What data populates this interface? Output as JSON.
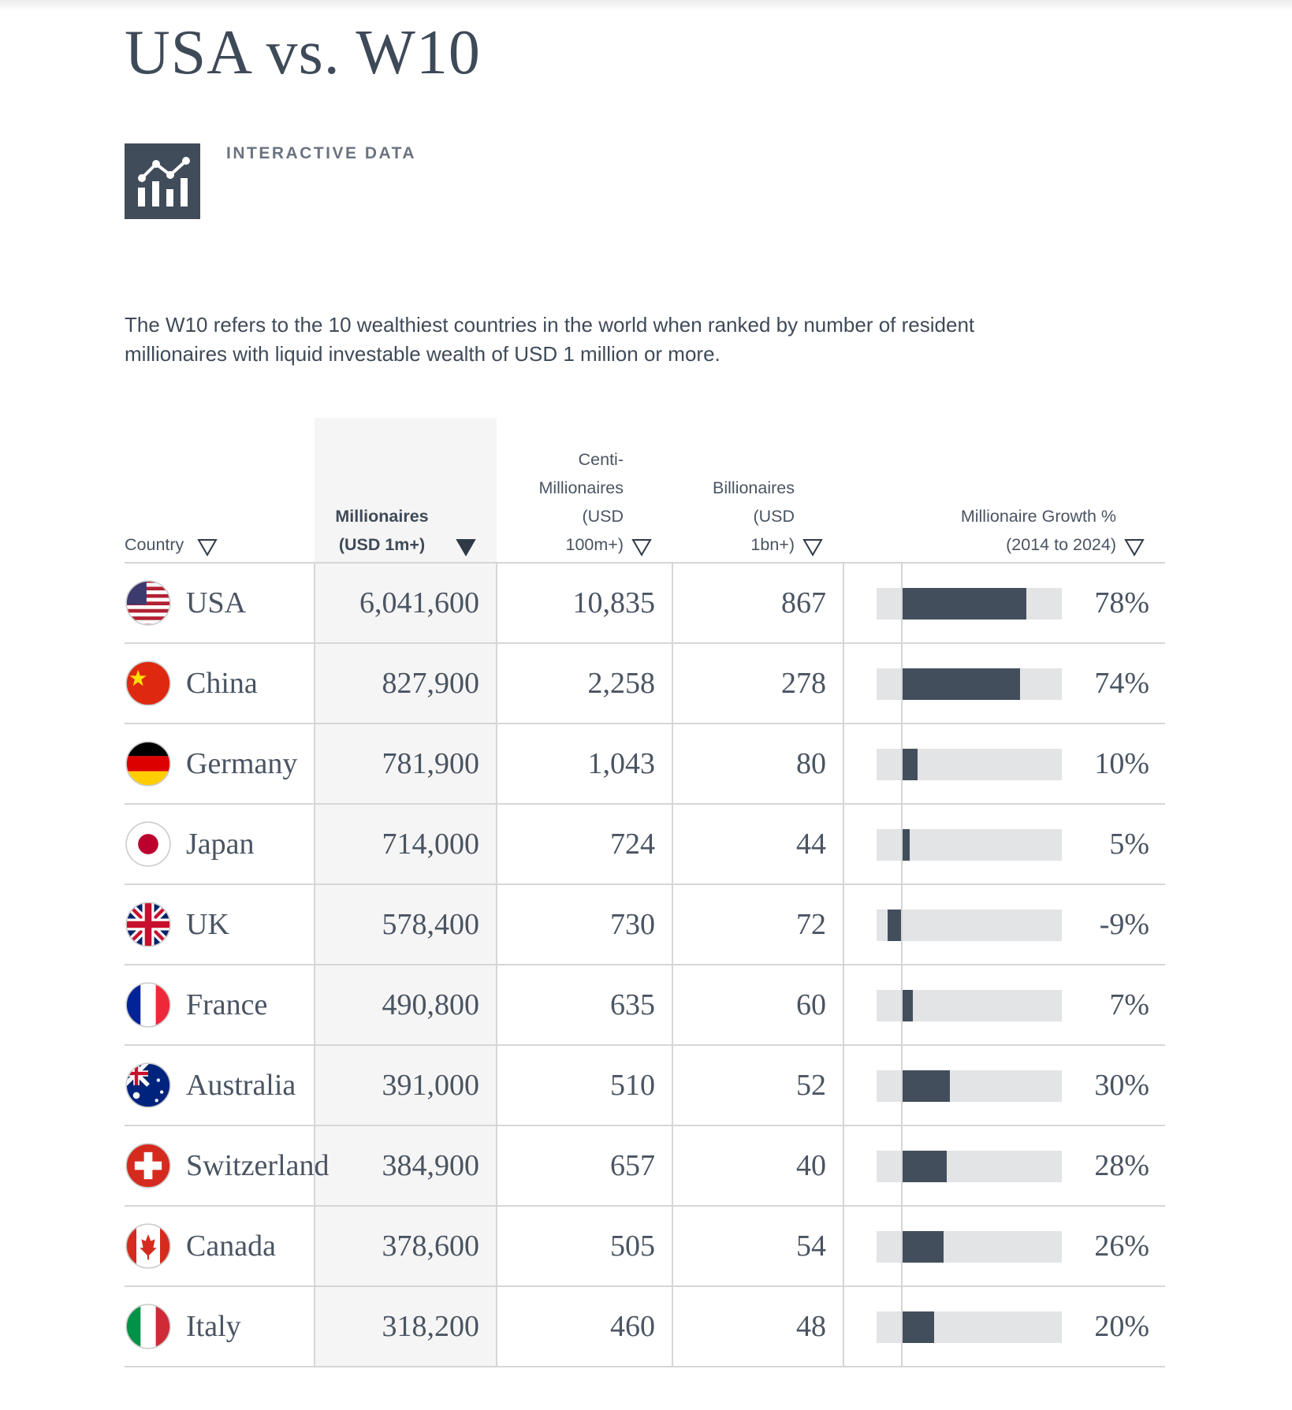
{
  "header": {
    "title": "USA vs. W10",
    "label": "INTERACTIVE DATA"
  },
  "description": "The W10 refers to the 10 wealthiest countries in the world when ranked by number of resident millionaires with liquid investable wealth of USD 1 million or more.",
  "table": {
    "columns": [
      [
        "Country"
      ],
      [
        "Millionaires",
        "(USD 1m+)"
      ],
      [
        "Centi-",
        "Millionaires",
        "(USD",
        "100m+)"
      ],
      [
        "Billionaires",
        "(USD",
        "1bn+)"
      ],
      [
        "Millionaire Growth %",
        "(2014 to 2024)"
      ]
    ],
    "rows": [
      {
        "country": "USA",
        "millionaires": "6,041,600",
        "centi": "10,835",
        "billionaires": "867",
        "growth": {
          "value": 78,
          "label": "78%"
        }
      },
      {
        "country": "China",
        "millionaires": "827,900",
        "centi": "2,258",
        "billionaires": "278",
        "growth": {
          "value": 74,
          "label": "74%"
        }
      },
      {
        "country": "Germany",
        "millionaires": "781,900",
        "centi": "1,043",
        "billionaires": "80",
        "growth": {
          "value": 10,
          "label": "10%"
        }
      },
      {
        "country": "Japan",
        "millionaires": "714,000",
        "centi": "724",
        "billionaires": "44",
        "growth": {
          "value": 5,
          "label": "5%"
        }
      },
      {
        "country": "UK",
        "millionaires": "578,400",
        "centi": "730",
        "billionaires": "72",
        "growth": {
          "value": -9,
          "label": "-9%"
        }
      },
      {
        "country": "France",
        "millionaires": "490,800",
        "centi": "635",
        "billionaires": "60",
        "growth": {
          "value": 7,
          "label": "7%"
        }
      },
      {
        "country": "Australia",
        "millionaires": "391,000",
        "centi": "510",
        "billionaires": "52",
        "growth": {
          "value": 30,
          "label": "30%"
        }
      },
      {
        "country": "Switzerland",
        "millionaires": "384,900",
        "centi": "657",
        "billionaires": "40",
        "growth": {
          "value": 28,
          "label": "28%"
        }
      },
      {
        "country": "Canada",
        "millionaires": "378,600",
        "centi": "505",
        "billionaires": "54",
        "growth": {
          "value": 26,
          "label": "26%"
        }
      },
      {
        "country": "Italy",
        "millionaires": "318,200",
        "centi": "460",
        "billionaires": "48",
        "growth": {
          "value": 20,
          "label": "20%"
        }
      }
    ]
  }
}
